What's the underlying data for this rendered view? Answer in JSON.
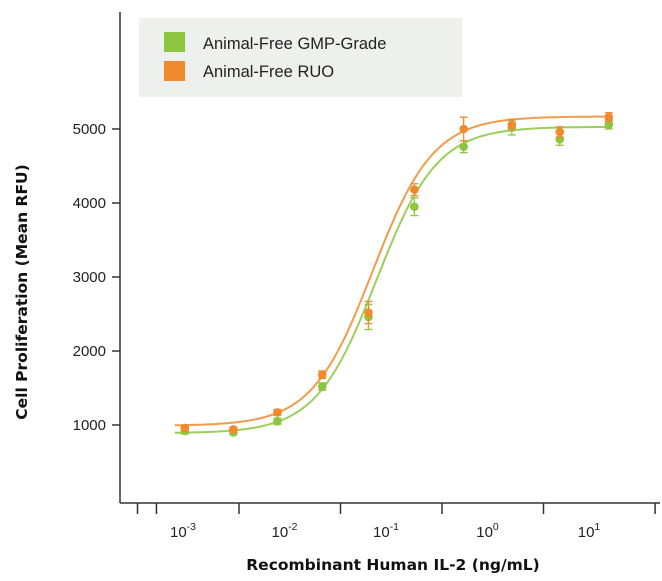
{
  "chart_data": {
    "type": "scatter",
    "title": "",
    "xlabel": "Recombinant Human IL-2 (ng/mL)",
    "ylabel": "Cell Proliferation (Mean RFU)",
    "xscale": "log",
    "xlim": [
      0.0005,
      40
    ],
    "ylim": [
      0,
      6500
    ],
    "x_ticks": [
      {
        "value": 0.001,
        "base": "10",
        "exp": "-3"
      },
      {
        "value": 0.01,
        "base": "10",
        "exp": "-2"
      },
      {
        "value": 0.1,
        "base": "10",
        "exp": "-1"
      },
      {
        "value": 1,
        "base": "10",
        "exp": "0"
      },
      {
        "value": 10,
        "base": "10",
        "exp": "1"
      }
    ],
    "y_ticks": [
      {
        "value": 1000,
        "label": "1000"
      },
      {
        "value": 2000,
        "label": "2000"
      },
      {
        "value": 3000,
        "label": "3000"
      },
      {
        "value": 4000,
        "label": "4000"
      },
      {
        "value": 5000,
        "label": "5000"
      }
    ],
    "grid": false,
    "legend_position": "top-left",
    "series": [
      {
        "name": "Animal-Free GMP-Grade",
        "color": "#8cc63f",
        "x": [
          0.00093,
          0.0028,
          0.0076,
          0.021,
          0.06,
          0.17,
          0.52,
          1.55,
          4.6,
          14.0
        ],
        "y": [
          920,
          900,
          1050,
          1520,
          2460,
          3950,
          4760,
          5020,
          4860,
          5060
        ],
        "error": [
          40,
          30,
          40,
          50,
          170,
          120,
          80,
          100,
          80,
          60
        ],
        "fit": {
          "bottom": 890,
          "top": 5030,
          "ec50": 0.072,
          "hill": 1.45
        }
      },
      {
        "name": "Animal-Free RUO",
        "color": "#f08a2c",
        "x": [
          0.00093,
          0.0028,
          0.0076,
          0.021,
          0.06,
          0.17,
          0.52,
          1.55,
          4.6,
          14.0
        ],
        "y": [
          960,
          940,
          1170,
          1680,
          2520,
          4180,
          5000,
          5060,
          4960,
          5160
        ],
        "error": [
          30,
          30,
          40,
          50,
          150,
          80,
          160,
          70,
          70,
          60
        ],
        "fit": {
          "bottom": 990,
          "top": 5170,
          "ec50": 0.066,
          "hill": 1.45
        }
      }
    ]
  }
}
